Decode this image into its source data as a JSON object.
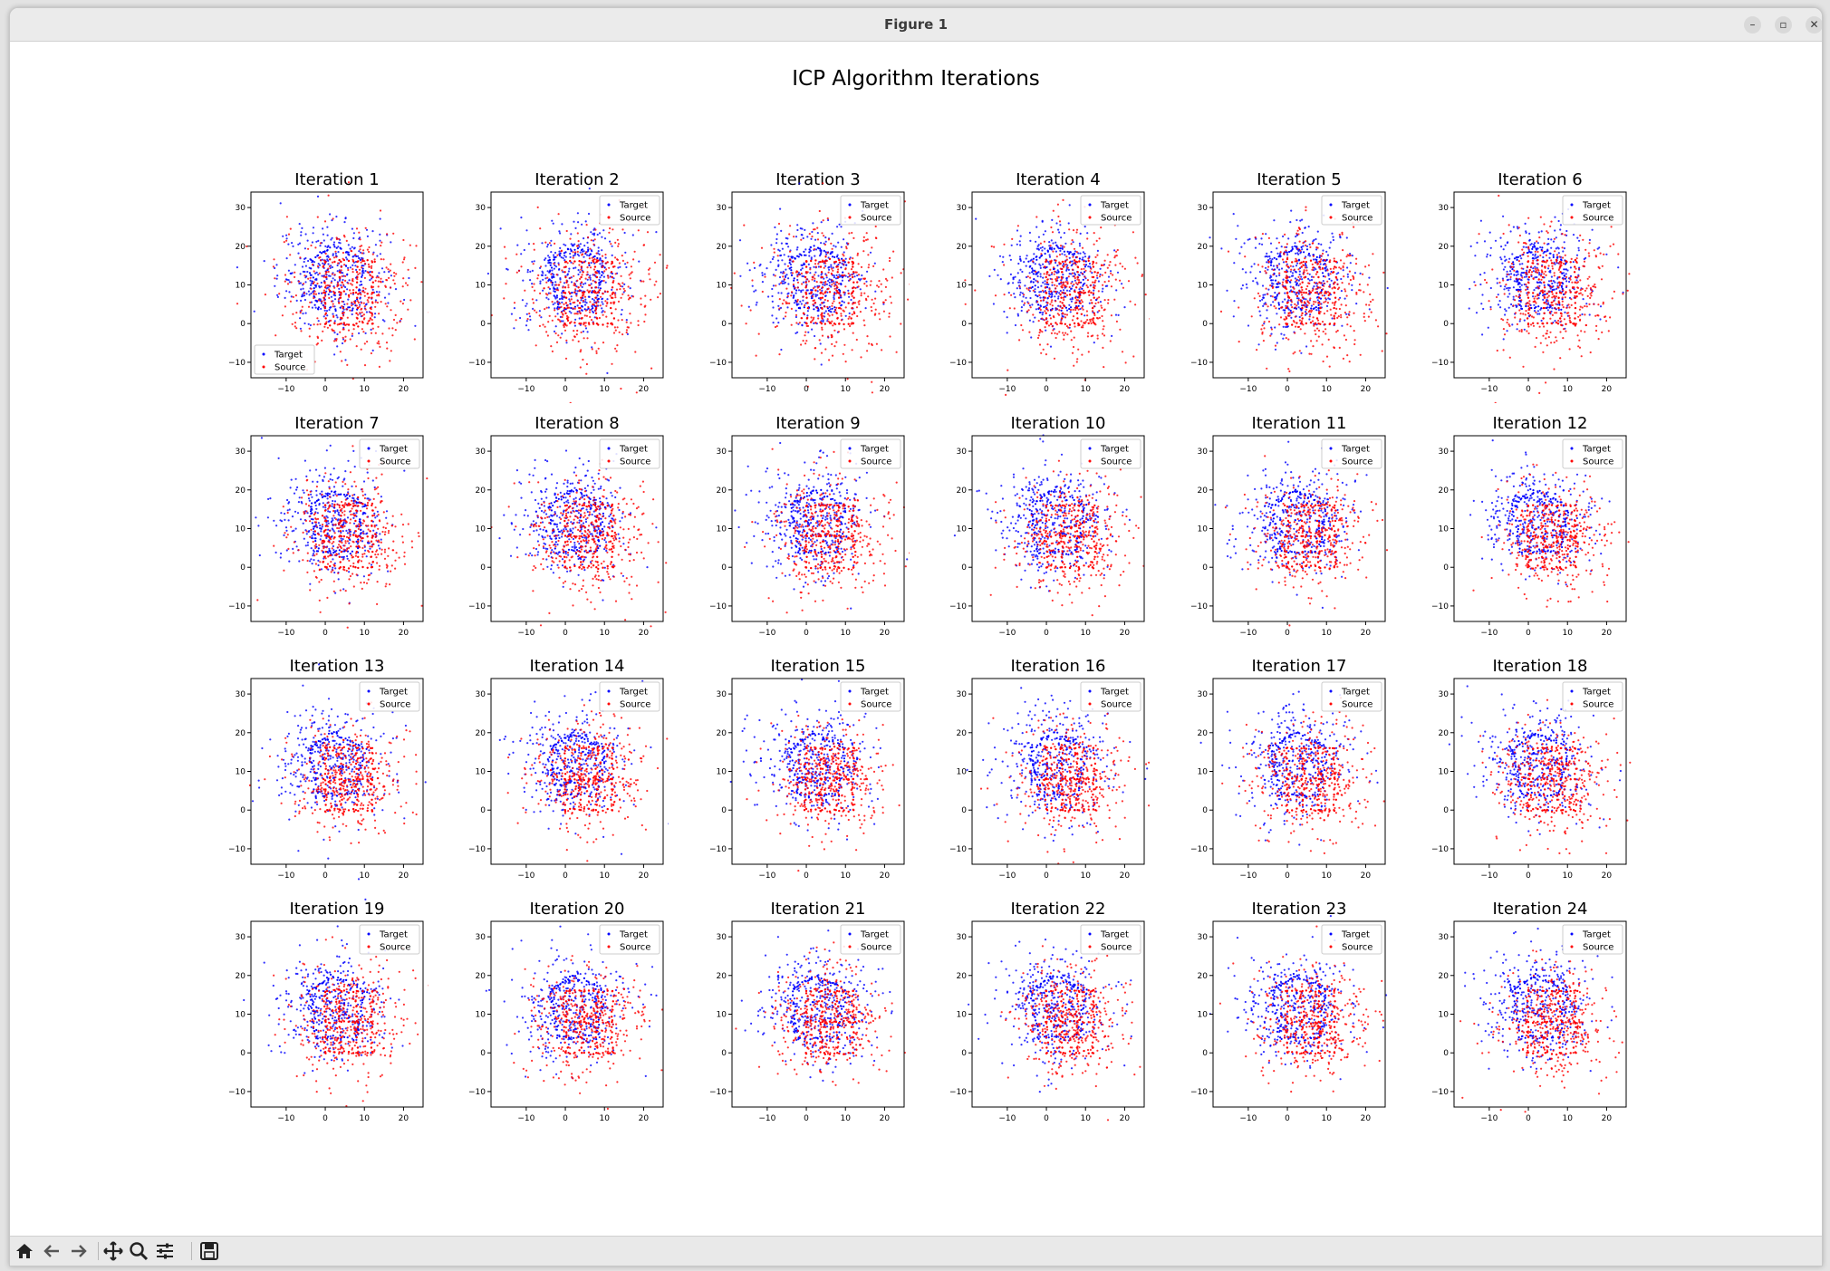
{
  "window": {
    "title": "Figure 1"
  },
  "toolbar": {
    "buttons": [
      {
        "icon": "home-icon"
      },
      {
        "icon": "back-icon"
      },
      {
        "icon": "forward-icon"
      },
      {
        "icon": "pan-icon"
      },
      {
        "icon": "zoom-icon"
      },
      {
        "icon": "configure-subplots-icon"
      },
      {
        "icon": "save-icon"
      }
    ]
  },
  "colors": {
    "target": "#0000ff",
    "source": "#ff0000"
  },
  "chart_data": {
    "type": "scatter",
    "suptitle": "ICP Algorithm Iterations",
    "panel_titles": [
      "Iteration 1",
      "Iteration 2",
      "Iteration 3",
      "Iteration 4",
      "Iteration 5",
      "Iteration 6",
      "Iteration 7",
      "Iteration 8",
      "Iteration 9",
      "Iteration 10",
      "Iteration 11",
      "Iteration 12",
      "Iteration 13",
      "Iteration 14",
      "Iteration 15",
      "Iteration 16",
      "Iteration 17",
      "Iteration 18",
      "Iteration 19",
      "Iteration 20",
      "Iteration 21",
      "Iteration 22",
      "Iteration 23",
      "Iteration 24"
    ],
    "series": [
      {
        "name": "Target",
        "color": "#0000ff"
      },
      {
        "name": "Source",
        "color": "#ff0000"
      }
    ],
    "legend_position_first": "lower left",
    "legend_position_others": "upper right",
    "xticks": [
      "−10",
      "0",
      "10",
      "20"
    ],
    "yticks": [
      "30",
      "20",
      "10",
      "0",
      "−10"
    ],
    "xlim": [
      -19,
      25
    ],
    "ylim": [
      -14,
      34
    ],
    "target_shape": {
      "description_points": [
        [
          -4,
          16
        ],
        [
          2,
          20
        ],
        [
          10,
          16
        ],
        [
          8,
          4
        ],
        [
          -2,
          4
        ]
      ]
    },
    "source_shape": {
      "rect": [
        0,
        0,
        12,
        16
      ]
    }
  }
}
